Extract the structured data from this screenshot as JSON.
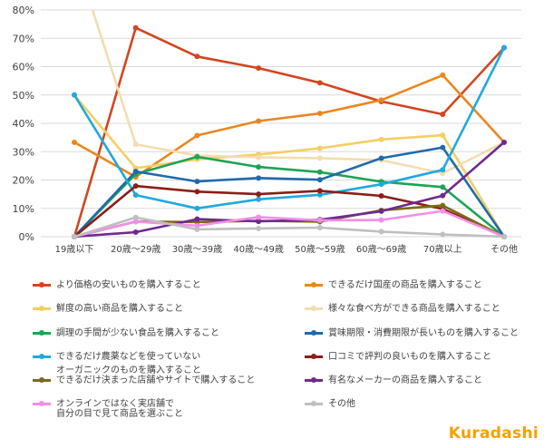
{
  "chart_data": {
    "type": "line",
    "categories": [
      "19歳以下",
      "20歳～29歳",
      "30歳～39歳",
      "40歳～49歳",
      "50歳～59歳",
      "60歳～69歳",
      "70歳以上",
      "その他"
    ],
    "y_ticks": [
      "0%",
      "10%",
      "20%",
      "30%",
      "40%",
      "50%",
      "60%",
      "70%",
      "80%"
    ],
    "ylim": [
      0,
      80
    ],
    "grid": true,
    "legend_position": "bottom",
    "series": [
      {
        "name": "より価格の安いものを購入すること",
        "color": "#d2461f",
        "values": [
          0,
          73.7,
          63.6,
          59.5,
          54.3,
          47.7,
          43.2,
          66.7
        ]
      },
      {
        "name": "できるだけ国産の商品を購入すること",
        "color": "#e8871e",
        "values": [
          33.3,
          21.1,
          35.7,
          40.8,
          43.5,
          48.2,
          57.0,
          33.3
        ]
      },
      {
        "name": "鮮度の高い商品を購入すること",
        "color": "#f3cf63",
        "values": [
          50,
          24.2,
          27.3,
          29.0,
          31.2,
          34.3,
          35.8,
          0
        ]
      },
      {
        "name": "様々な食べ方ができる商品を購入すること",
        "color": "#f3dcb0",
        "values": [
          100,
          32.6,
          28.6,
          28.0,
          27.7,
          27.0,
          22.4,
          33.3
        ]
      },
      {
        "name": "調理の手間が少ない食品を購入すること",
        "color": "#1fa356",
        "values": [
          0,
          22.1,
          28.2,
          24.6,
          22.8,
          19.4,
          17.5,
          0
        ]
      },
      {
        "name": "賞味期限・消費期限が長いものを購入すること",
        "color": "#1f6aab",
        "values": [
          0,
          23.0,
          19.5,
          20.7,
          20.1,
          27.7,
          31.5,
          0
        ]
      },
      {
        "name": "できるだけ農薬などを使っていない",
        "color": "#20a9de",
        "values": [
          50,
          14.7,
          10.0,
          13.2,
          14.8,
          18.5,
          23.6,
          66.7
        ]
      },
      {
        "name": "口コミで評判の良いものを購入すること",
        "color": "#8b1e17",
        "values": [
          0,
          17.9,
          15.9,
          15.0,
          16.2,
          14.4,
          9.8,
          0
        ]
      },
      {
        "name": "オーガニックのものを購入すること\nできるだけ決まった店舗やサイトで購入すること",
        "color": "#7d6a0f",
        "values": [
          0,
          5.3,
          5.2,
          5.6,
          5.3,
          9.3,
          11.0,
          0
        ]
      },
      {
        "name": "有名なメーカーの商品を購入すること",
        "color": "#6e2a8f",
        "values": [
          0,
          1.6,
          6.2,
          5.4,
          6.0,
          9.0,
          14.5,
          33.3
        ]
      },
      {
        "name": "オンラインではなく実店舗で\n自分の目で見て商品を選ぶこと",
        "color": "#f38ee8",
        "values": [
          0,
          5.3,
          3.9,
          6.9,
          5.8,
          5.9,
          9.1,
          0
        ]
      },
      {
        "name": "その他",
        "color": "#bfbfbf",
        "values": [
          0,
          6.8,
          2.6,
          2.9,
          3.2,
          1.8,
          0.8,
          0
        ]
      }
    ]
  },
  "logo": {
    "text": "Kuradashi"
  }
}
